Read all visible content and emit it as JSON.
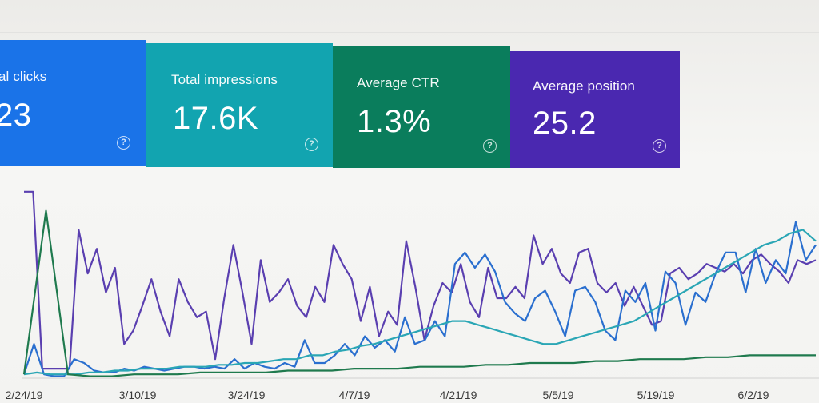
{
  "metrics": [
    {
      "label": "al clicks",
      "value": "23",
      "color": "#1a73e8",
      "help_icon": "question-circle-icon"
    },
    {
      "label": "Total impressions",
      "value": "17.6K",
      "color": "#12a4b0",
      "help_icon": "question-circle-icon"
    },
    {
      "label": "Average CTR",
      "value": "1.3%",
      "color": "#0a7d5c",
      "help_icon": "question-circle-icon"
    },
    {
      "label": "Average position",
      "value": "25.2",
      "color": "#4a28b0",
      "help_icon": "question-circle-icon"
    }
  ],
  "chart_data": {
    "type": "line",
    "x_ticks": [
      "2/24/19",
      "3/10/19",
      "3/24/19",
      "4/7/19",
      "4/21/19",
      "5/5/19",
      "5/19/19",
      "6/2/19"
    ],
    "grid": false,
    "series": [
      {
        "color": "#5a3fb0",
        "values": [
          0.98,
          0.98,
          0.05,
          0.05,
          0.05,
          0.05,
          0.78,
          0.55,
          0.68,
          0.45,
          0.58,
          0.18,
          0.25,
          0.38,
          0.52,
          0.35,
          0.22,
          0.52,
          0.4,
          0.32,
          0.35,
          0.1,
          0.42,
          0.7,
          0.45,
          0.18,
          0.62,
          0.4,
          0.45,
          0.52,
          0.38,
          0.32,
          0.48,
          0.4,
          0.7,
          0.6,
          0.52,
          0.3,
          0.48,
          0.22,
          0.35,
          0.28,
          0.72,
          0.48,
          0.2,
          0.38,
          0.5,
          0.45,
          0.6,
          0.4,
          0.32,
          0.58,
          0.42,
          0.42,
          0.48,
          0.42,
          0.75,
          0.6,
          0.68,
          0.55,
          0.5,
          0.66,
          0.68,
          0.5,
          0.45,
          0.5,
          0.38,
          0.48,
          0.38,
          0.28,
          0.3,
          0.55,
          0.58,
          0.52,
          0.55,
          0.6,
          0.58,
          0.56,
          0.6,
          0.55,
          0.62,
          0.65,
          0.6,
          0.56,
          0.5,
          0.62,
          0.6,
          0.62
        ]
      },
      {
        "color": "#2a6fcf",
        "values": [
          0.02,
          0.18,
          0.02,
          0.01,
          0.01,
          0.1,
          0.08,
          0.04,
          0.03,
          0.03,
          0.05,
          0.04,
          0.06,
          0.05,
          0.04,
          0.05,
          0.06,
          0.06,
          0.05,
          0.06,
          0.05,
          0.1,
          0.05,
          0.08,
          0.06,
          0.05,
          0.08,
          0.06,
          0.2,
          0.08,
          0.08,
          0.12,
          0.18,
          0.12,
          0.22,
          0.16,
          0.2,
          0.14,
          0.32,
          0.18,
          0.2,
          0.3,
          0.22,
          0.6,
          0.66,
          0.58,
          0.65,
          0.56,
          0.4,
          0.34,
          0.3,
          0.42,
          0.46,
          0.35,
          0.22,
          0.46,
          0.48,
          0.4,
          0.25,
          0.2,
          0.46,
          0.4,
          0.5,
          0.25,
          0.56,
          0.5,
          0.28,
          0.45,
          0.4,
          0.55,
          0.66,
          0.66,
          0.45,
          0.68,
          0.5,
          0.62,
          0.55,
          0.82,
          0.62,
          0.7
        ]
      },
      {
        "color": "#2aa6b5",
        "values": [
          0.02,
          0.03,
          0.02,
          0.02,
          0.02,
          0.03,
          0.03,
          0.04,
          0.04,
          0.05,
          0.05,
          0.05,
          0.06,
          0.06,
          0.06,
          0.07,
          0.07,
          0.08,
          0.08,
          0.09,
          0.1,
          0.1,
          0.12,
          0.12,
          0.14,
          0.15,
          0.17,
          0.18,
          0.2,
          0.22,
          0.24,
          0.26,
          0.28,
          0.3,
          0.3,
          0.28,
          0.26,
          0.24,
          0.22,
          0.2,
          0.18,
          0.18,
          0.2,
          0.22,
          0.24,
          0.26,
          0.28,
          0.3,
          0.34,
          0.38,
          0.42,
          0.46,
          0.5,
          0.54,
          0.58,
          0.62,
          0.66,
          0.7,
          0.72,
          0.76,
          0.78,
          0.72
        ]
      },
      {
        "color": "#1f7a4e",
        "values": [
          0.02,
          0.88,
          0.02,
          0.01,
          0.01,
          0.02,
          0.02,
          0.02,
          0.03,
          0.03,
          0.03,
          0.03,
          0.04,
          0.04,
          0.04,
          0.05,
          0.05,
          0.05,
          0.06,
          0.06,
          0.06,
          0.07,
          0.07,
          0.08,
          0.08,
          0.08,
          0.09,
          0.09,
          0.1,
          0.1,
          0.1,
          0.11,
          0.11,
          0.12,
          0.12,
          0.12,
          0.12
        ]
      }
    ]
  }
}
